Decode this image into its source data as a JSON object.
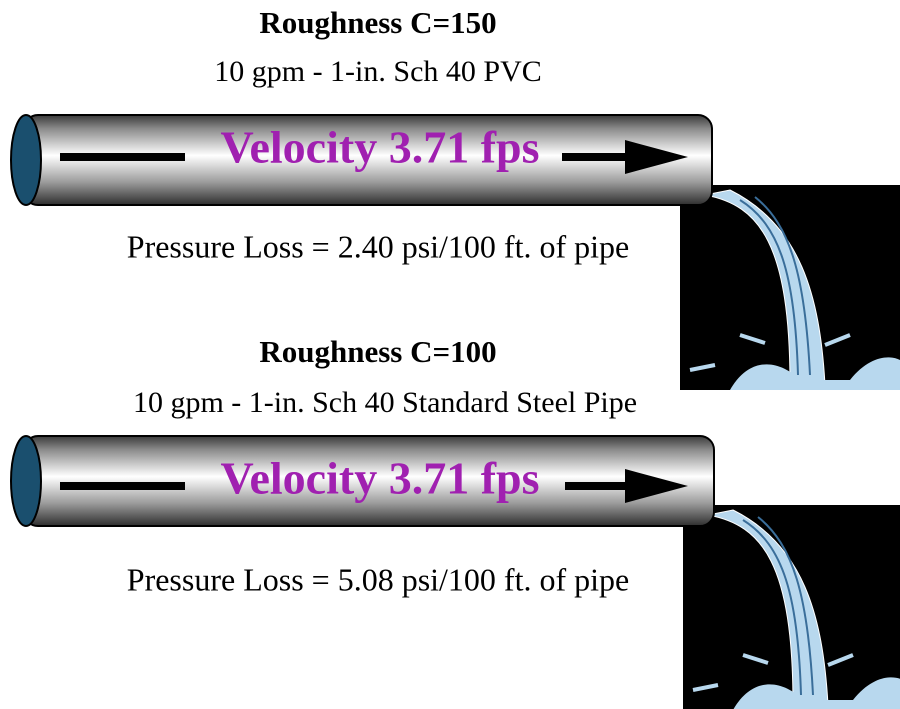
{
  "sections": [
    {
      "title": "Roughness C=150",
      "subtitle": "10 gpm - 1-in. Sch 40 PVC",
      "velocity": "Velocity 3.71 fps",
      "pressure_loss": "Pressure Loss = 2.40 psi/100 ft. of pipe"
    },
    {
      "title": "Roughness C=100",
      "subtitle": "10 gpm - 1-in. Sch 40 Standard Steel Pipe",
      "velocity": "Velocity 3.71 fps",
      "pressure_loss": "Pressure Loss = 5.08 psi/100 ft. of pipe"
    }
  ]
}
